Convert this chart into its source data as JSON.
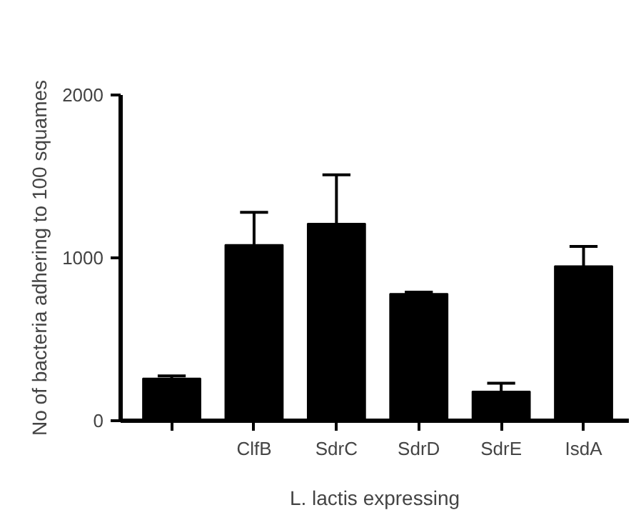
{
  "chart_data": {
    "type": "bar",
    "categories": [
      null,
      "ClfB",
      "SdrC",
      "SdrD",
      "SdrE",
      "IsdA"
    ],
    "values": [
      260,
      1080,
      1210,
      780,
      180,
      950
    ],
    "errors": [
      15,
      200,
      300,
      10,
      50,
      120
    ],
    "color": "#000000",
    "ylim": [
      0,
      2000
    ],
    "yticks": [
      0,
      1000,
      2000
    ],
    "xlabel": "L. lactis expressing",
    "ylabel": "No of bacteria adhering to 100 squames",
    "grid": false
  }
}
